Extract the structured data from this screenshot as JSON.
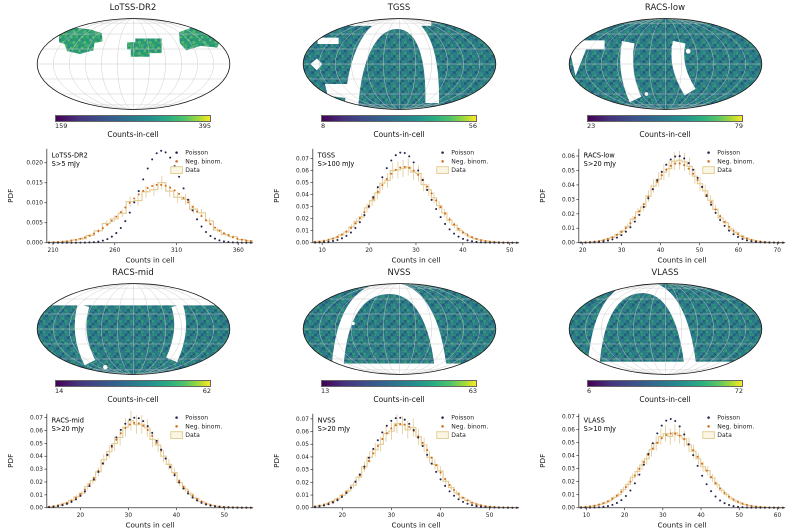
{
  "legend": {
    "items": [
      {
        "label": "Poisson",
        "marker": "dot",
        "color": "#23234f"
      },
      {
        "label": "Neg. binom.",
        "marker": "dot",
        "color": "#cf6a1f"
      },
      {
        "label": "Data",
        "marker": "box",
        "color": "#e3cd96",
        "fill": "#fbf6e3"
      }
    ]
  },
  "colors": {
    "poisson": "#23234f",
    "neg_binom": "#cf6a1f",
    "data_hist": "#e3cd96",
    "data_fill": "#fbf6e3",
    "map_teal": "#2a7284",
    "map_green": "#2e9a72",
    "viridis_min": "#440154",
    "viridis_max": "#fde725",
    "graticule": "#c8c8c8",
    "outline": "#1a1a1a"
  },
  "panels": [
    {
      "id": "lotss",
      "map": {
        "title": "LoTSS-DR2",
        "cbar_min": "159",
        "cbar_max": "395",
        "cbar_label": "Counts-in-cell"
      }
    },
    {
      "id": "tgss",
      "map": {
        "title": "TGSS",
        "cbar_min": "8",
        "cbar_max": "56",
        "cbar_label": "Counts-in-cell"
      }
    },
    {
      "id": "racs-low",
      "map": {
        "title": "RACS-low",
        "cbar_min": "23",
        "cbar_max": "79",
        "cbar_label": "Counts-in-cell"
      }
    },
    {
      "id": "racs-mid",
      "map": {
        "title": "RACS-mid",
        "cbar_min": "14",
        "cbar_max": "62",
        "cbar_label": "Counts-in-cell"
      }
    },
    {
      "id": "nvss",
      "map": {
        "title": "NVSS",
        "cbar_min": "13",
        "cbar_max": "63",
        "cbar_label": "Counts-in-cell"
      }
    },
    {
      "id": "vlass",
      "map": {
        "title": "VLASS",
        "cbar_min": "6",
        "cbar_max": "72",
        "cbar_label": "Counts-in-cell"
      }
    }
  ],
  "chart_data": [
    {
      "type": "scatter",
      "survey": "LoTSS-DR2",
      "flux_cut": "S>5 mJy",
      "xlabel": "Counts in cell",
      "ylabel": "PDF",
      "xlim": [
        205,
        372
      ],
      "ylim": [
        0,
        0.0235
      ],
      "xticks": [
        210,
        260,
        310,
        360
      ],
      "yticks": [
        0.0,
        0.005,
        0.01,
        0.015,
        0.02
      ],
      "ytick_decimals": 3,
      "hist_bins": 26,
      "noise": 0.14,
      "series": [
        {
          "name": "Poisson",
          "style": "dots",
          "mean": 298,
          "sigma": 17.3,
          "peak_pdf": 0.023
        },
        {
          "name": "Neg. binom.",
          "style": "dots",
          "mean": 296,
          "sigma": 27.5,
          "peak_pdf": 0.0145
        },
        {
          "name": "Data",
          "style": "step-histogram",
          "follows": "Neg. binom."
        }
      ]
    },
    {
      "type": "scatter",
      "survey": "TGSS",
      "flux_cut": "S>100 mJy",
      "xlabel": "Counts in cell",
      "ylabel": "PDF",
      "xlim": [
        8,
        52
      ],
      "ylim": [
        0,
        0.078
      ],
      "xticks": [
        10,
        20,
        30,
        40,
        50
      ],
      "yticks": [
        0.0,
        0.01,
        0.02,
        0.03,
        0.04,
        0.05,
        0.06,
        0.07
      ],
      "ytick_decimals": 2,
      "hist_bins": 40,
      "noise": 0.05,
      "series": [
        {
          "name": "Poisson",
          "style": "dots",
          "mean": 27,
          "sigma": 5.2,
          "peak_pdf": 0.075
        },
        {
          "name": "Neg. binom.",
          "style": "dots",
          "mean": 27.5,
          "sigma": 6.3,
          "peak_pdf": 0.063
        },
        {
          "name": "Data",
          "style": "step-histogram",
          "follows": "Neg. binom."
        }
      ]
    },
    {
      "type": "scatter",
      "survey": "RACS-low",
      "flux_cut": "S>20 mJy",
      "xlabel": "Counts in cell",
      "ylabel": "PDF",
      "xlim": [
        19,
        72
      ],
      "ylim": [
        0,
        0.065
      ],
      "xticks": [
        20,
        30,
        40,
        50,
        60,
        70
      ],
      "yticks": [
        0.0,
        0.01,
        0.02,
        0.03,
        0.04,
        0.05,
        0.06
      ],
      "ytick_decimals": 2,
      "hist_bins": 40,
      "noise": 0.05,
      "series": [
        {
          "name": "Poisson",
          "style": "dots",
          "mean": 44.5,
          "sigma": 6.6,
          "peak_pdf": 0.06
        },
        {
          "name": "Neg. binom.",
          "style": "dots",
          "mean": 44.5,
          "sigma": 7.3,
          "peak_pdf": 0.055
        },
        {
          "name": "Data",
          "style": "step-histogram",
          "follows": "Neg. binom."
        }
      ]
    },
    {
      "type": "scatter",
      "survey": "RACS-mid",
      "flux_cut": "S>20 mJy",
      "xlabel": "Counts in cell",
      "ylabel": "PDF",
      "xlim": [
        13,
        56
      ],
      "ylim": [
        0,
        0.073
      ],
      "xticks": [
        20,
        30,
        40,
        50
      ],
      "yticks": [
        0.0,
        0.01,
        0.02,
        0.03,
        0.04,
        0.05,
        0.06,
        0.07
      ],
      "ytick_decimals": 2,
      "hist_bins": 38,
      "noise": 0.05,
      "series": [
        {
          "name": "Poisson",
          "style": "dots",
          "mean": 31.5,
          "sigma": 5.7,
          "peak_pdf": 0.07
        },
        {
          "name": "Neg. binom.",
          "style": "dots",
          "mean": 31.5,
          "sigma": 6.0,
          "peak_pdf": 0.066
        },
        {
          "name": "Data",
          "style": "step-histogram",
          "follows": "Neg. binom."
        }
      ]
    },
    {
      "type": "scatter",
      "survey": "NVSS",
      "flux_cut": "S>20 mJy",
      "xlabel": "Counts in cell",
      "ylabel": "PDF",
      "xlim": [
        14,
        56
      ],
      "ylim": [
        0,
        0.074
      ],
      "xticks": [
        20,
        30,
        40,
        50
      ],
      "yticks": [
        0.0,
        0.01,
        0.02,
        0.03,
        0.04,
        0.05,
        0.06,
        0.07
      ],
      "ytick_decimals": 2,
      "hist_bins": 38,
      "noise": 0.06,
      "series": [
        {
          "name": "Poisson",
          "style": "dots",
          "mean": 31.5,
          "sigma": 5.6,
          "peak_pdf": 0.071
        },
        {
          "name": "Neg. binom.",
          "style": "dots",
          "mean": 32,
          "sigma": 6.1,
          "peak_pdf": 0.066
        },
        {
          "name": "Data",
          "style": "step-histogram",
          "follows": "Neg. binom."
        }
      ]
    },
    {
      "type": "scatter",
      "survey": "VLASS",
      "flux_cut": "S>10 mJy",
      "xlabel": "Counts in cell",
      "ylabel": "PDF",
      "xlim": [
        8,
        62
      ],
      "ylim": [
        0,
        0.072
      ],
      "xticks": [
        10,
        20,
        30,
        40,
        50,
        60
      ],
      "yticks": [
        0.0,
        0.01,
        0.02,
        0.03,
        0.04,
        0.05,
        0.06,
        0.07
      ],
      "ytick_decimals": 2,
      "hist_bins": 44,
      "noise": 0.05,
      "series": [
        {
          "name": "Poisson",
          "style": "dots",
          "mean": 32,
          "sigma": 5.8,
          "peak_pdf": 0.068
        },
        {
          "name": "Neg. binom.",
          "style": "dots",
          "mean": 32.5,
          "sigma": 7.6,
          "peak_pdf": 0.057
        },
        {
          "name": "Data",
          "style": "step-histogram",
          "follows": "Neg. binom."
        }
      ]
    }
  ]
}
